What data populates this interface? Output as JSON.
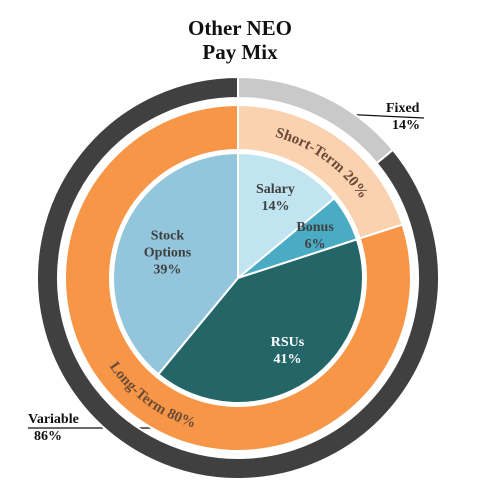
{
  "chart_data": {
    "type": "nested-pie",
    "title": "Other NEO Pay Mix",
    "series": [
      {
        "categories": [
          "Salary",
          "Bonus",
          "RSUs",
          "Stock Options"
        ],
        "values": [
          14,
          6,
          41,
          39
        ],
        "value_labels": [
          "14%",
          "6%",
          "41%",
          "39%"
        ],
        "colors": [
          "#c0e4f0",
          "#4aabc5",
          "#246568",
          "#93c6dc"
        ],
        "label_colors": [
          "#404040",
          "#404040",
          "#ffffff",
          "#404040"
        ]
      },
      {
        "categories": [
          "Short-Term",
          "Long-Term"
        ],
        "values": [
          20,
          80
        ],
        "value_labels": [
          "20%",
          "80%"
        ],
        "colors": [
          "#fbd2b0",
          "#f79646"
        ]
      },
      {
        "categories": [
          "Fixed",
          "Variable"
        ],
        "values": [
          14,
          86
        ],
        "value_labels": [
          "14%",
          "86%"
        ],
        "colors": [
          "#c9c9c9",
          "#404040"
        ]
      }
    ]
  }
}
